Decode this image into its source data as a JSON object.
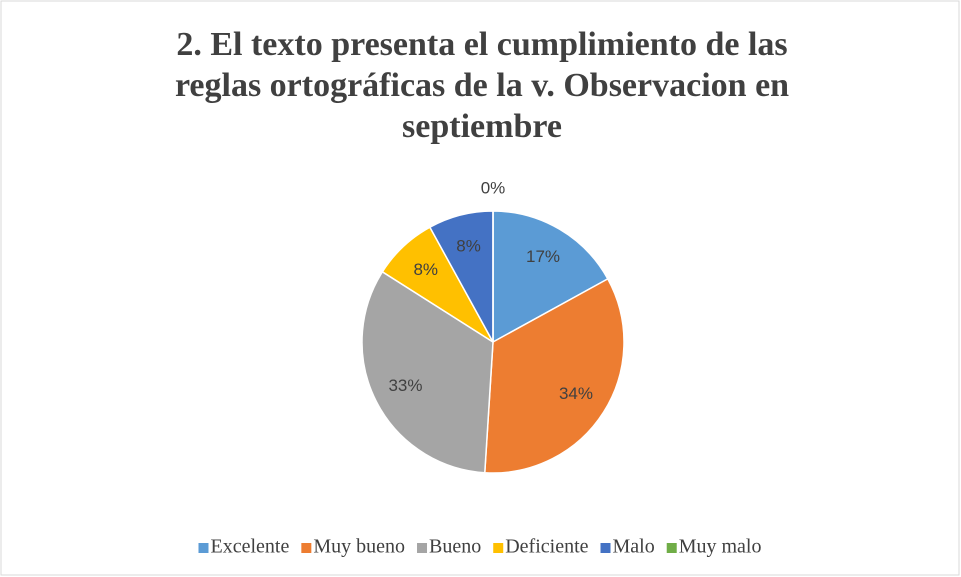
{
  "chart_data": {
    "type": "pie",
    "title": [
      "2. El texto presenta el cumplimiento de las",
      "reglas ortográficas de la v. Observacion en",
      "septiembre"
    ],
    "categories": [
      "Excelente",
      "Muy bueno",
      "Bueno",
      "Deficiente",
      "Malo",
      "Muy malo"
    ],
    "values": [
      17,
      34,
      33,
      8,
      8,
      0
    ],
    "value_labels": [
      "17%",
      "34%",
      "33%",
      "8%",
      "8%",
      "0%"
    ],
    "colors": [
      "#5b9bd5",
      "#ed7d31",
      "#a5a5a5",
      "#ffc000",
      "#4472c4",
      "#70ad47"
    ],
    "legend": "bottom"
  }
}
